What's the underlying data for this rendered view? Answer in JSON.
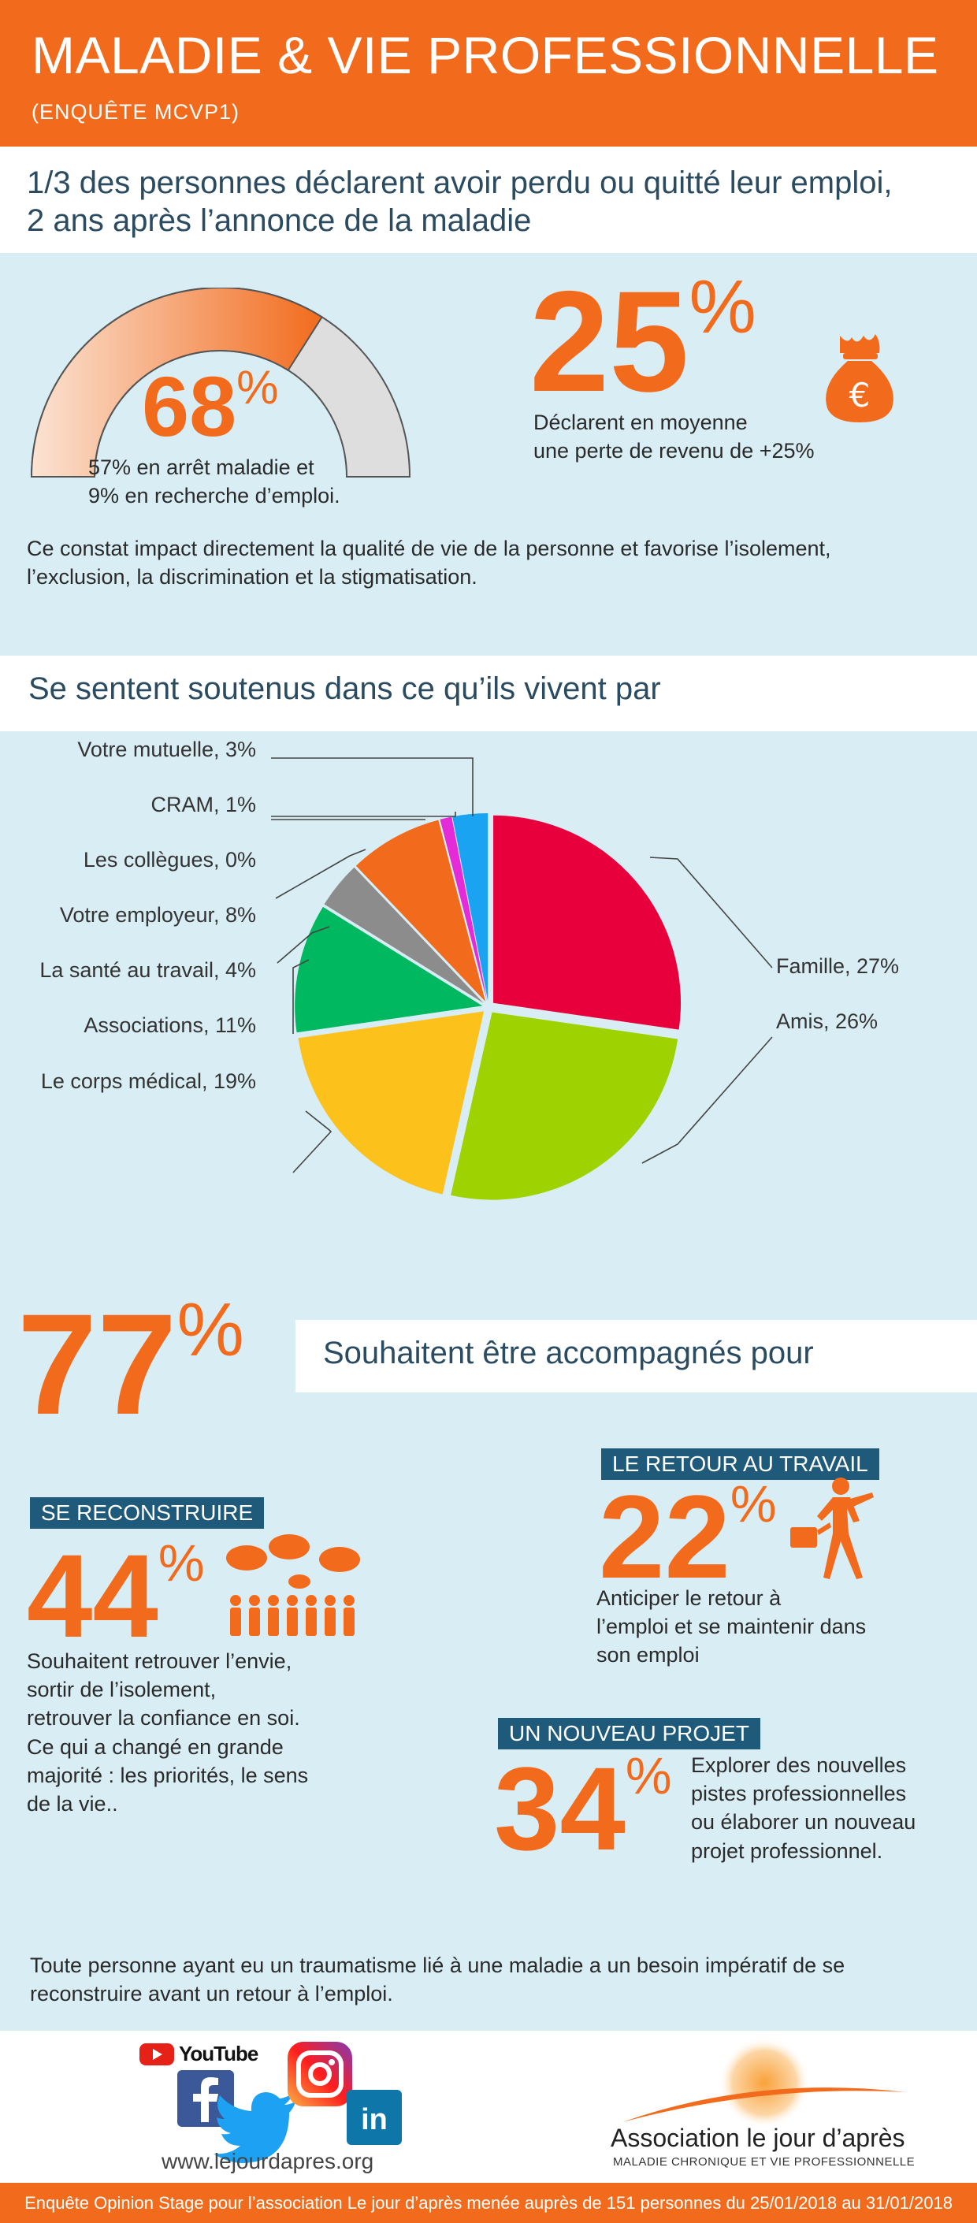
{
  "header": {
    "title": "MALADIE & VIE PROFESSIONNELLE",
    "subtitle": "(ENQUÊTE  MCVP1)"
  },
  "intro": {
    "line1": "1/3 des personnes déclarent avoir perdu ou quitté leur emploi,",
    "line2": "2 ans après l’annonce de la maladie"
  },
  "gauge": {
    "value": "68",
    "fill_fraction": 0.68,
    "pct": "%",
    "line1": "57% en arrêt maladie et",
    "line2": "9% en recherche d’emploi."
  },
  "revenue": {
    "value": "25",
    "pct": "%",
    "line1": "Déclarent en moyenne",
    "line2": "une perte de revenu de +25%",
    "icon": "money-bag-euro-icon"
  },
  "impact": {
    "line1": "Ce constat impact directement la qualité de vie de la personne et favorise l’isolement,",
    "line2": "l’exclusion, la discrimination et la stigmatisation."
  },
  "support": {
    "heading": "Se sentent soutenus dans ce qu’ils vivent par"
  },
  "chart_data": {
    "type": "pie",
    "slices": [
      {
        "label": "Famille, 27%",
        "name": "Famille",
        "value": 27,
        "color": "#e8003c"
      },
      {
        "label": "Amis, 26%",
        "name": "Amis",
        "value": 26,
        "color": "#9ed200"
      },
      {
        "label": "Le corps médical, 19%",
        "name": "Le corps médical",
        "value": 19,
        "color": "#fcc21b"
      },
      {
        "label": "Associations, 11%",
        "name": "Associations",
        "value": 11,
        "color": "#00b860"
      },
      {
        "label": "La santé au travail, 4%",
        "name": "La santé au travail",
        "value": 4,
        "color": "#8c8c8c"
      },
      {
        "label": "Votre employeur, 8%",
        "name": "Votre employeur",
        "value": 8,
        "color": "#f26b1d"
      },
      {
        "label": "Les collègues, 0%",
        "name": "Les collègues",
        "value": 0,
        "color": "#cccccc"
      },
      {
        "label": "CRAM, 1%",
        "name": "CRAM",
        "value": 1,
        "color": "#e52ad7"
      },
      {
        "label": "Votre mutuelle, 3%",
        "name": "Votre mutuelle",
        "value": 3,
        "color": "#1aa3f0"
      }
    ]
  },
  "accompany": {
    "value": "77",
    "pct": "%",
    "heading": "Souhaitent être accompagnés pour"
  },
  "rebuild": {
    "tag": "SE RECONSTRUIRE",
    "value": "44",
    "pct": "%",
    "icon": "group-talking-icon",
    "lines": [
      "Souhaitent retrouver l’envie,",
      "sortir de l’isolement,",
      "retrouver la confiance en soi.",
      "Ce qui a changé en grande",
      "majorité : les priorités, le sens",
      "de la vie.."
    ]
  },
  "return": {
    "tag": "LE RETOUR AU TRAVAIL",
    "value": "22",
    "pct": "%",
    "icon": "businesswoman-walking-icon",
    "lines": [
      "Anticiper le retour à",
      "l’emploi et se maintenir dans",
      "son emploi"
    ]
  },
  "project": {
    "tag": "UN NOUVEAU PROJET",
    "value": "34",
    "pct": "%",
    "lines": [
      "Explorer des nouvelles",
      "pistes professionnelles",
      "ou élaborer un nouveau",
      "projet professionnel."
    ]
  },
  "conclusion": {
    "line1": "Toute personne ayant eu un traumatisme lié à une maladie a un besoin impératif de se",
    "line2": "reconstruire avant un retour à l’emploi."
  },
  "footer": {
    "youtube": "YouTube",
    "website": "www.lejourdapres.org",
    "org_name": "Association le jour d’après",
    "org_tagline": "MALADIE CHRONIQUE ET VIE PROFESSIONNELLE",
    "source": "Enquête Opinion Stage pour l’association Le jour d’après menée auprès de 151 personnes du 25/01/2018 au 31/01/2018"
  },
  "colors": {
    "accent": "#f26b1d",
    "background": "#d9edf5",
    "tag": "#1f5a7a",
    "heading": "#2b4b61"
  }
}
